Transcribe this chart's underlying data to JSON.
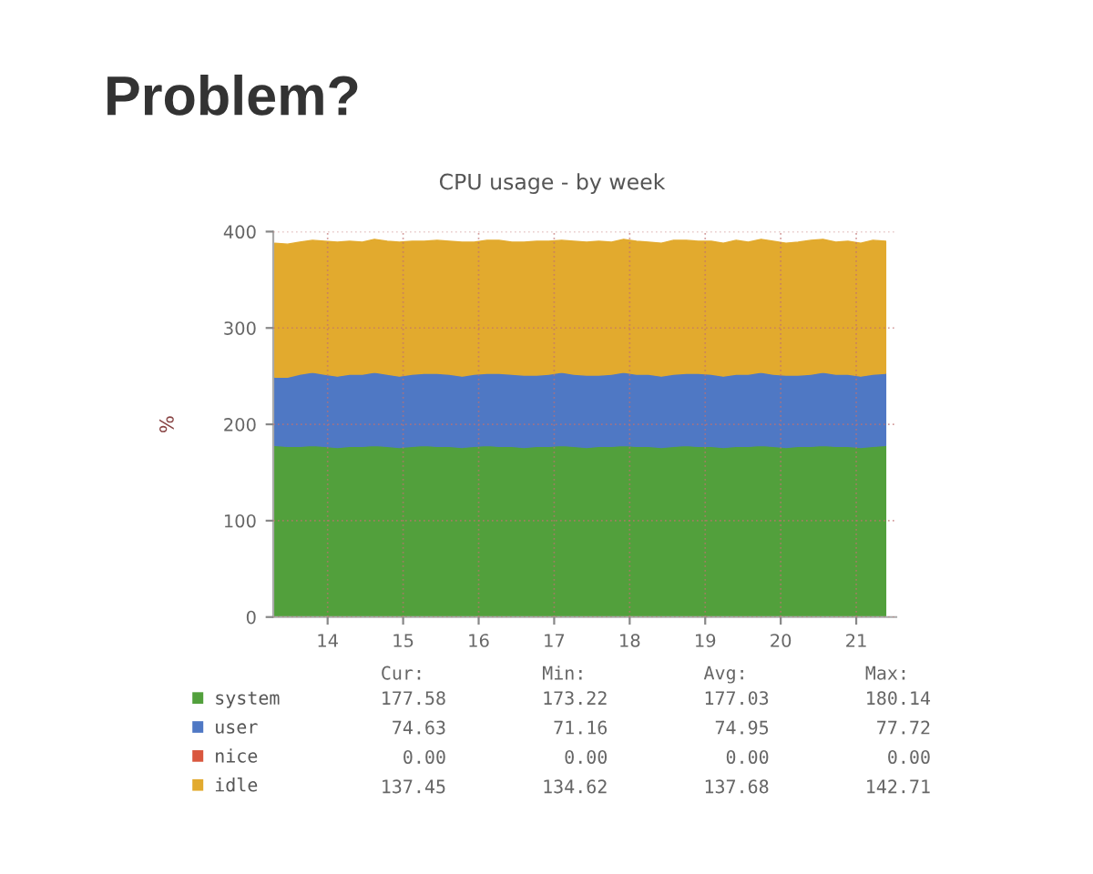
{
  "chart_data": {
    "type": "area",
    "title": "Problem?",
    "subtitle": "CPU usage - by week",
    "ylabel": "%",
    "x": [
      13.3,
      13.47,
      13.63,
      13.8,
      13.96,
      14.13,
      14.29,
      14.46,
      14.62,
      14.79,
      14.95,
      15.12,
      15.28,
      15.45,
      15.61,
      15.78,
      15.94,
      16.11,
      16.27,
      16.44,
      16.6,
      16.77,
      16.93,
      17.1,
      17.26,
      17.43,
      17.59,
      17.76,
      17.92,
      18.09,
      18.25,
      18.42,
      18.58,
      18.75,
      18.91,
      19.08,
      19.24,
      19.41,
      19.57,
      19.74,
      19.9,
      20.07,
      20.23,
      20.4,
      20.56,
      20.73,
      20.89,
      21.06,
      21.22,
      21.39
    ],
    "xlim": [
      13.28,
      21.53
    ],
    "xticks": [
      14,
      15,
      16,
      17,
      18,
      19,
      20,
      21
    ],
    "ylim": [
      0,
      400
    ],
    "yticks": [
      0,
      100,
      200,
      300,
      400
    ],
    "stacked": true,
    "grid": true,
    "legend": "bottom",
    "series": [
      {
        "name": "system",
        "color": "#52a03c",
        "values": [
          178,
          177,
          177,
          178,
          177,
          176,
          177,
          177,
          178,
          177,
          176,
          177,
          178,
          177,
          177,
          176,
          177,
          178,
          177,
          177,
          176,
          177,
          177,
          178,
          177,
          176,
          177,
          177,
          178,
          177,
          177,
          176,
          177,
          178,
          177,
          177,
          176,
          177,
          177,
          178,
          177,
          176,
          177,
          177,
          178,
          177,
          177,
          176,
          177,
          178
        ]
      },
      {
        "name": "user",
        "color": "#4f78c4",
        "values": [
          71,
          72,
          75,
          76,
          75,
          74,
          75,
          75,
          76,
          75,
          74,
          75,
          75,
          76,
          75,
          74,
          75,
          75,
          76,
          75,
          75,
          74,
          75,
          76,
          75,
          75,
          74,
          75,
          76,
          75,
          75,
          74,
          75,
          75,
          76,
          75,
          74,
          75,
          75,
          76,
          75,
          75,
          74,
          75,
          76,
          75,
          75,
          74,
          75,
          75
        ]
      },
      {
        "name": "nice",
        "color": "#d9573e",
        "values": [
          null,
          null,
          null,
          null,
          null,
          null,
          null,
          null,
          null,
          null,
          null,
          null,
          null,
          null,
          null,
          null,
          null,
          null,
          null,
          null,
          null,
          null,
          null,
          null,
          null,
          null,
          null,
          null,
          null,
          null,
          null,
          null,
          null,
          null,
          null,
          null,
          null,
          null,
          null,
          null,
          null,
          null,
          null,
          null,
          null,
          null,
          null,
          null,
          null,
          null
        ]
      },
      {
        "name": "idle",
        "color": "#e2aa2e",
        "values": [
          139,
          138,
          137,
          137,
          138,
          139,
          138,
          137,
          138,
          138,
          139,
          138,
          137,
          138,
          138,
          139,
          137,
          138,
          138,
          137,
          138,
          139,
          138,
          137,
          138,
          138,
          139,
          137,
          138,
          138,
          137,
          138,
          139,
          138,
          137,
          138,
          138,
          139,
          137,
          138,
          138,
          137,
          138,
          139,
          138,
          137,
          138,
          138,
          139,
          137
        ]
      }
    ],
    "annotations": [
      "Cur:",
      "Min:",
      "Avg:",
      "Max:",
      "177.58",
      "173.22",
      "177.03",
      "180.14",
      "74.63",
      "71.16",
      "74.95",
      "77.72",
      "0.00",
      "0.00",
      "0.00",
      "0.00",
      "137.45",
      "134.62",
      "137.68",
      "142.71"
    ]
  }
}
